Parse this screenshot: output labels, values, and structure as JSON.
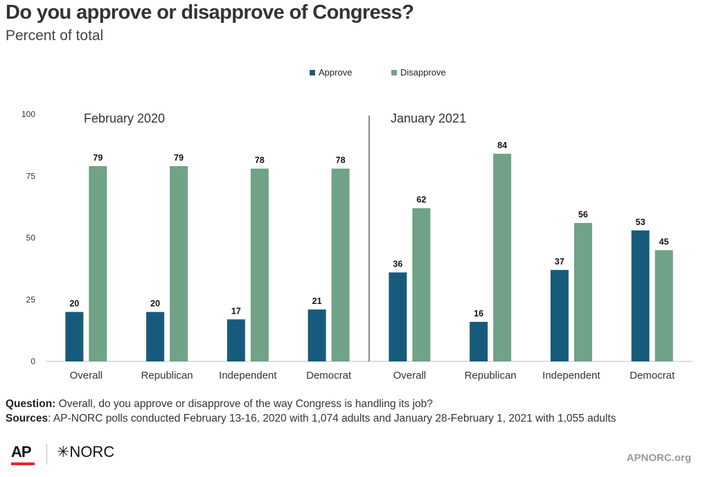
{
  "title": "Do you approve or disapprove of Congress?",
  "subtitle": "Percent of total",
  "legend": [
    {
      "label": "Approve",
      "color": "#175b7c"
    },
    {
      "label": "Disapprove",
      "color": "#6fa287"
    }
  ],
  "colors": {
    "approve": "#175b7c",
    "disapprove": "#6fa287",
    "axis": "#bbbbbb",
    "divider": "#111111"
  },
  "chart_data": {
    "type": "bar",
    "ylim": [
      0,
      100
    ],
    "yticks": [
      0,
      25,
      50,
      75,
      100
    ],
    "grid": false,
    "legend_position": "top-center",
    "panels": [
      {
        "label": "February 2020",
        "categories": [
          "Overall",
          "Republican",
          "Independent",
          "Democrat"
        ],
        "series": [
          {
            "name": "Approve",
            "values": [
              20,
              20,
              17,
              21
            ]
          },
          {
            "name": "Disapprove",
            "values": [
              79,
              79,
              78,
              78
            ]
          }
        ]
      },
      {
        "label": "January 2021",
        "categories": [
          "Overall",
          "Republican",
          "Independent",
          "Democrat"
        ],
        "series": [
          {
            "name": "Approve",
            "values": [
              36,
              16,
              37,
              53
            ]
          },
          {
            "name": "Disapprove",
            "values": [
              62,
              84,
              56,
              45
            ]
          }
        ]
      }
    ]
  },
  "footer": {
    "question_label": "Question:",
    "question_text": " Overall, do you approve or disapprove of the way Congress is handling its job?",
    "sources_label": "Sources",
    "sources_text": ": AP-NORC polls conducted February 13-16, 2020 with 1,074 adults and January 28-February 1, 2021 with 1,055 adults"
  },
  "logos": {
    "ap": "AP",
    "norc": "✳NORC",
    "url": "APNORC.org"
  }
}
